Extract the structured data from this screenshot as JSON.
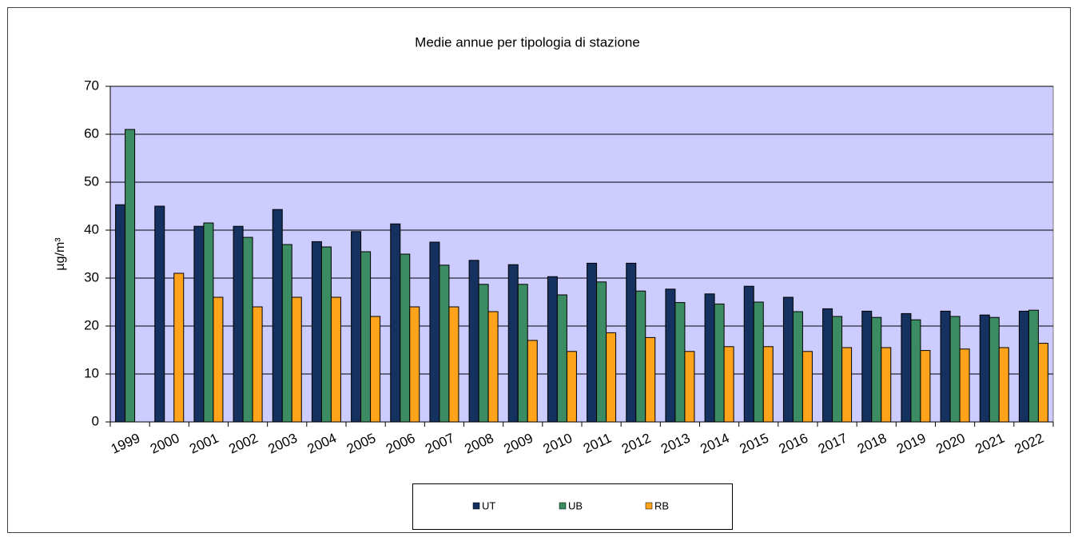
{
  "chart_data": {
    "type": "bar",
    "title": "Medie annue per tipologia di stazione",
    "y_label": "µg/m³",
    "categories": [
      "1999",
      "2000",
      "2001",
      "2002",
      "2003",
      "2004",
      "2005",
      "2006",
      "2007",
      "2008",
      "2009",
      "2010",
      "2011",
      "2012",
      "2013",
      "2014",
      "2015",
      "2016",
      "2017",
      "2018",
      "2019",
      "2020",
      "2021",
      "2022"
    ],
    "series": [
      {
        "name": "UT",
        "color": "#14315f",
        "values": [
          45.3,
          45,
          40.8,
          40.8,
          44.3,
          37.6,
          39.7,
          41.3,
          37.5,
          33.7,
          32.8,
          30.3,
          33.1,
          33.1,
          27.7,
          26.7,
          28.3,
          26,
          23.6,
          23.1,
          22.6,
          23.1,
          22.3,
          23.1
        ]
      },
      {
        "name": "UB",
        "color": "#3b8c62",
        "values": [
          61,
          null,
          41.5,
          38.5,
          37,
          36.5,
          35.5,
          35,
          32.7,
          28.7,
          28.7,
          26.5,
          29.2,
          27.3,
          24.9,
          24.6,
          25,
          23,
          22,
          21.8,
          21.3,
          22,
          21.8,
          23.3
        ]
      },
      {
        "name": "RB",
        "color": "#ffa31a",
        "values": [
          null,
          31,
          26,
          24,
          26,
          26,
          22,
          24,
          24,
          23,
          17,
          14.7,
          18.6,
          17.6,
          14.7,
          15.7,
          15.7,
          14.7,
          15.5,
          15.5,
          14.9,
          15.2,
          15.5,
          16.4
        ]
      }
    ],
    "ylim": [
      0,
      70
    ],
    "yticks": [
      0,
      10,
      20,
      30,
      40,
      50,
      60,
      70
    ],
    "grid": true,
    "plot_background": "#ccccff",
    "legend": "bottom"
  }
}
